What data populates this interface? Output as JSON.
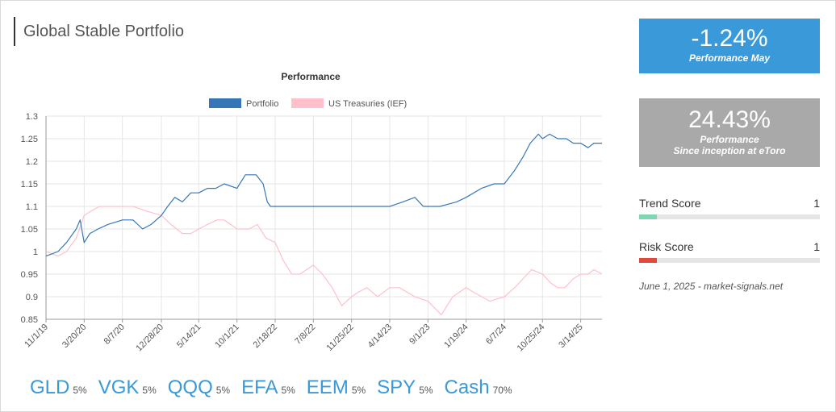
{
  "page": {
    "title": "Global Stable Portfolio"
  },
  "chart_data": {
    "type": "line",
    "title": "Performance",
    "xlabel": "",
    "ylabel": "",
    "ylim": [
      0.85,
      1.3
    ],
    "yticks": [
      "1.3",
      "1.25",
      "1.2",
      "1.15",
      "1.1",
      "1.05",
      "1",
      "0.95",
      "0.9",
      "0.85"
    ],
    "ytick_values": [
      1.3,
      1.25,
      1.2,
      1.15,
      1.1,
      1.05,
      1.0,
      0.95,
      0.9,
      0.85
    ],
    "x_start": "2019-11-01",
    "x_end": "2025-05-31",
    "xticks": [
      "11/1/19",
      "3/20/20",
      "8/7/20",
      "12/28/20",
      "5/14/21",
      "10/1/21",
      "2/18/22",
      "7/8/22",
      "11/25/22",
      "4/14/23",
      "9/1/23",
      "1/19/24",
      "6/7/24",
      "10/25/24",
      "3/14/25"
    ],
    "xtick_dates": [
      "2019-11-01",
      "2020-03-20",
      "2020-08-07",
      "2020-12-28",
      "2021-05-14",
      "2021-10-01",
      "2022-02-18",
      "2022-07-08",
      "2022-11-25",
      "2023-04-14",
      "2023-09-01",
      "2024-01-19",
      "2024-06-07",
      "2024-10-25",
      "2025-03-14"
    ],
    "grid": true,
    "legend_position": "top-center",
    "series": [
      {
        "name": "Portfolio",
        "color": "#3577b6",
        "points": [
          [
            "2019-11-01",
            0.99
          ],
          [
            "2019-12-15",
            1.0
          ],
          [
            "2020-01-15",
            1.02
          ],
          [
            "2020-02-20",
            1.05
          ],
          [
            "2020-03-05",
            1.07
          ],
          [
            "2020-03-20",
            1.02
          ],
          [
            "2020-04-10",
            1.04
          ],
          [
            "2020-05-10",
            1.05
          ],
          [
            "2020-06-15",
            1.06
          ],
          [
            "2020-08-07",
            1.07
          ],
          [
            "2020-09-15",
            1.07
          ],
          [
            "2020-10-20",
            1.05
          ],
          [
            "2020-11-20",
            1.06
          ],
          [
            "2020-12-28",
            1.08
          ],
          [
            "2021-01-20",
            1.1
          ],
          [
            "2021-02-15",
            1.12
          ],
          [
            "2021-03-15",
            1.11
          ],
          [
            "2021-04-15",
            1.13
          ],
          [
            "2021-05-14",
            1.13
          ],
          [
            "2021-06-15",
            1.14
          ],
          [
            "2021-07-15",
            1.14
          ],
          [
            "2021-08-15",
            1.15
          ],
          [
            "2021-10-01",
            1.14
          ],
          [
            "2021-11-01",
            1.17
          ],
          [
            "2021-12-10",
            1.17
          ],
          [
            "2022-01-05",
            1.15
          ],
          [
            "2022-01-20",
            1.11
          ],
          [
            "2022-02-01",
            1.1
          ],
          [
            "2022-07-08",
            1.1
          ],
          [
            "2022-11-25",
            1.1
          ],
          [
            "2023-04-14",
            1.1
          ],
          [
            "2023-06-01",
            1.11
          ],
          [
            "2023-07-15",
            1.12
          ],
          [
            "2023-08-15",
            1.1
          ],
          [
            "2023-09-01",
            1.1
          ],
          [
            "2023-10-15",
            1.1
          ],
          [
            "2023-12-15",
            1.11
          ],
          [
            "2024-01-19",
            1.12
          ],
          [
            "2024-03-15",
            1.14
          ],
          [
            "2024-05-01",
            1.15
          ],
          [
            "2024-06-07",
            1.15
          ],
          [
            "2024-07-15",
            1.18
          ],
          [
            "2024-08-15",
            1.21
          ],
          [
            "2024-09-10",
            1.24
          ],
          [
            "2024-10-10",
            1.26
          ],
          [
            "2024-10-25",
            1.25
          ],
          [
            "2024-11-20",
            1.26
          ],
          [
            "2024-12-20",
            1.25
          ],
          [
            "2025-01-20",
            1.25
          ],
          [
            "2025-02-15",
            1.24
          ],
          [
            "2025-03-14",
            1.24
          ],
          [
            "2025-04-10",
            1.23
          ],
          [
            "2025-05-01",
            1.24
          ],
          [
            "2025-05-31",
            1.24
          ]
        ]
      },
      {
        "name": "US Treasuries (IEF)",
        "color": "#ffc0cb",
        "points": [
          [
            "2019-11-01",
            1.0
          ],
          [
            "2019-12-15",
            0.99
          ],
          [
            "2020-01-15",
            1.0
          ],
          [
            "2020-02-20",
            1.03
          ],
          [
            "2020-03-20",
            1.08
          ],
          [
            "2020-04-15",
            1.09
          ],
          [
            "2020-05-15",
            1.1
          ],
          [
            "2020-07-01",
            1.1
          ],
          [
            "2020-08-07",
            1.1
          ],
          [
            "2020-09-15",
            1.1
          ],
          [
            "2020-11-01",
            1.09
          ],
          [
            "2020-12-28",
            1.08
          ],
          [
            "2021-02-01",
            1.06
          ],
          [
            "2021-03-15",
            1.04
          ],
          [
            "2021-04-15",
            1.04
          ],
          [
            "2021-05-14",
            1.05
          ],
          [
            "2021-06-15",
            1.06
          ],
          [
            "2021-07-20",
            1.07
          ],
          [
            "2021-08-15",
            1.07
          ],
          [
            "2021-10-01",
            1.05
          ],
          [
            "2021-11-15",
            1.05
          ],
          [
            "2021-12-15",
            1.06
          ],
          [
            "2022-01-15",
            1.03
          ],
          [
            "2022-02-18",
            1.02
          ],
          [
            "2022-03-20",
            0.98
          ],
          [
            "2022-04-20",
            0.95
          ],
          [
            "2022-05-20",
            0.95
          ],
          [
            "2022-07-08",
            0.97
          ],
          [
            "2022-08-10",
            0.95
          ],
          [
            "2022-09-15",
            0.92
          ],
          [
            "2022-10-20",
            0.88
          ],
          [
            "2022-11-25",
            0.9
          ],
          [
            "2022-12-20",
            0.91
          ],
          [
            "2023-01-20",
            0.92
          ],
          [
            "2023-03-01",
            0.9
          ],
          [
            "2023-04-14",
            0.92
          ],
          [
            "2023-05-20",
            0.92
          ],
          [
            "2023-07-15",
            0.9
          ],
          [
            "2023-09-01",
            0.89
          ],
          [
            "2023-10-20",
            0.86
          ],
          [
            "2023-12-01",
            0.9
          ],
          [
            "2024-01-19",
            0.92
          ],
          [
            "2024-02-15",
            0.91
          ],
          [
            "2024-04-15",
            0.89
          ],
          [
            "2024-06-07",
            0.9
          ],
          [
            "2024-07-15",
            0.92
          ],
          [
            "2024-08-15",
            0.94
          ],
          [
            "2024-09-15",
            0.96
          ],
          [
            "2024-10-25",
            0.95
          ],
          [
            "2024-11-25",
            0.93
          ],
          [
            "2024-12-20",
            0.92
          ],
          [
            "2025-01-15",
            0.92
          ],
          [
            "2025-02-15",
            0.94
          ],
          [
            "2025-03-14",
            0.95
          ],
          [
            "2025-04-10",
            0.95
          ],
          [
            "2025-05-01",
            0.96
          ],
          [
            "2025-05-31",
            0.95
          ]
        ]
      }
    ]
  },
  "kpis": [
    {
      "value": "-1.24%",
      "label": "Performance May"
    },
    {
      "value": "24.43%",
      "label_line1": "Performance",
      "label_line2": "Since inception at eToro"
    }
  ],
  "scores": [
    {
      "name": "Trend Score",
      "value": "1",
      "level": 0.1,
      "color": "#7fd6b2"
    },
    {
      "name": "Risk Score",
      "value": "1",
      "level": 0.1,
      "color": "#e04a3c"
    }
  ],
  "dateline": "June 1, 2025 - market-signals.net",
  "holdings": [
    {
      "ticker": "GLD",
      "weight": "5%"
    },
    {
      "ticker": "VGK",
      "weight": "5%"
    },
    {
      "ticker": "QQQ",
      "weight": "5%"
    },
    {
      "ticker": "EFA",
      "weight": "5%"
    },
    {
      "ticker": "EEM",
      "weight": "5%"
    },
    {
      "ticker": "SPY",
      "weight": "5%"
    },
    {
      "ticker": "Cash",
      "weight": "70%"
    }
  ]
}
